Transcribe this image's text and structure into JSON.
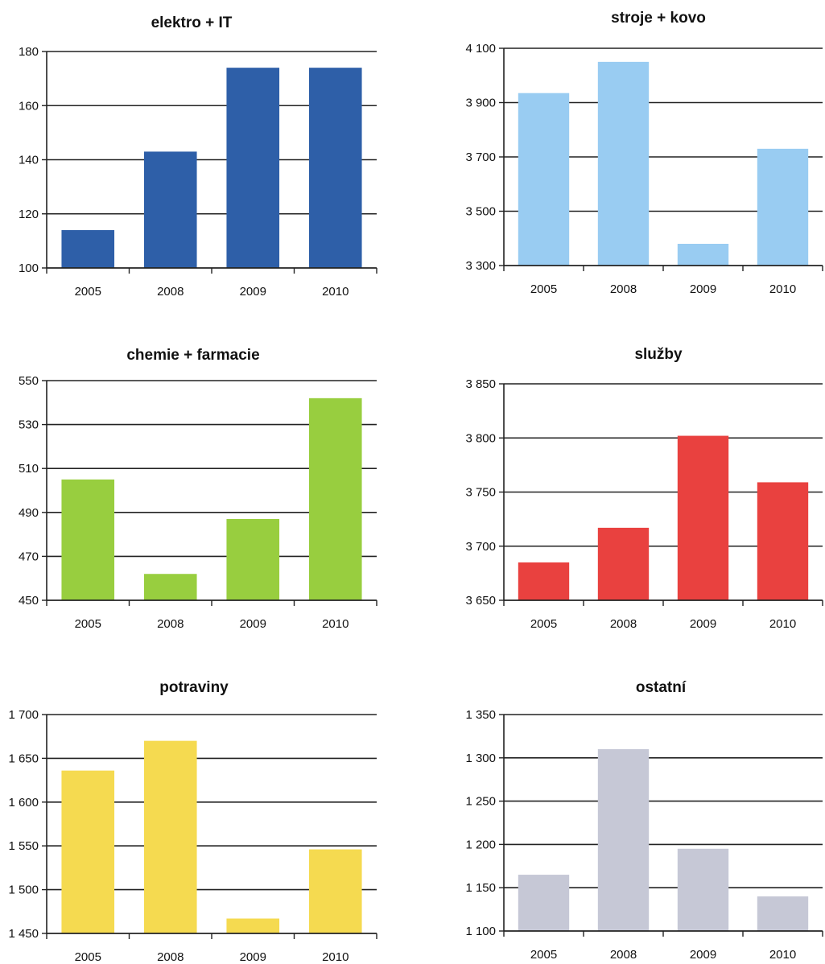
{
  "chart_data": [
    {
      "type": "bar",
      "title": "elektro + IT",
      "categories": [
        "2005",
        "2008",
        "2009",
        "2010"
      ],
      "values": [
        114,
        143,
        174,
        174
      ],
      "ylim": [
        100,
        180
      ],
      "yticks": [
        100,
        120,
        140,
        160,
        180
      ],
      "ytick_labels": [
        "100",
        "120",
        "140",
        "160",
        "180"
      ],
      "color": "#2E5FA8",
      "grid": true
    },
    {
      "type": "bar",
      "title": "stroje + kovo",
      "categories": [
        "2005",
        "2008",
        "2009",
        "2010"
      ],
      "values": [
        3935,
        4050,
        3380,
        3730
      ],
      "ylim": [
        3300,
        4100
      ],
      "yticks": [
        3300,
        3500,
        3700,
        3900,
        4100
      ],
      "ytick_labels": [
        "3 300",
        "3 500",
        "3 700",
        "3 900",
        "4 100"
      ],
      "color": "#99CCF2",
      "grid": true
    },
    {
      "type": "bar",
      "title": "chemie + farmacie",
      "categories": [
        "2005",
        "2008",
        "2009",
        "2010"
      ],
      "values": [
        505,
        462,
        487,
        542
      ],
      "ylim": [
        450,
        550
      ],
      "yticks": [
        450,
        470,
        490,
        510,
        530,
        550
      ],
      "ytick_labels": [
        "450",
        "470",
        "490",
        "510",
        "530",
        "550"
      ],
      "color": "#98CE3F",
      "grid": true
    },
    {
      "type": "bar",
      "title": "služby",
      "categories": [
        "2005",
        "2008",
        "2009",
        "2010"
      ],
      "values": [
        3685,
        3717,
        3802,
        3759
      ],
      "ylim": [
        3650,
        3850
      ],
      "yticks": [
        3650,
        3700,
        3750,
        3800,
        3850
      ],
      "ytick_labels": [
        "3 650",
        "3 700",
        "3 750",
        "3 800",
        "3 850"
      ],
      "color": "#E9413F",
      "grid": true
    },
    {
      "type": "bar",
      "title": "potraviny",
      "categories": [
        "2005",
        "2008",
        "2009",
        "2010"
      ],
      "values": [
        1636,
        1670,
        1467,
        1546
      ],
      "ylim": [
        1450,
        1700
      ],
      "yticks": [
        1450,
        1500,
        1550,
        1600,
        1650,
        1700
      ],
      "ytick_labels": [
        "1 450",
        "1 500",
        "1 550",
        "1 600",
        "1 650",
        "1 700"
      ],
      "color": "#F5DA50",
      "grid": true
    },
    {
      "type": "bar",
      "title": "ostatní",
      "categories": [
        "2005",
        "2008",
        "2009",
        "2010"
      ],
      "values": [
        1165,
        1310,
        1195,
        1140
      ],
      "ylim": [
        1100,
        1350
      ],
      "yticks": [
        1100,
        1150,
        1200,
        1250,
        1300,
        1350
      ],
      "ytick_labels": [
        "1 100",
        "1 150",
        "1 200",
        "1 250",
        "1 300",
        "1 350"
      ],
      "color": "#C6C8D6",
      "grid": true
    }
  ]
}
